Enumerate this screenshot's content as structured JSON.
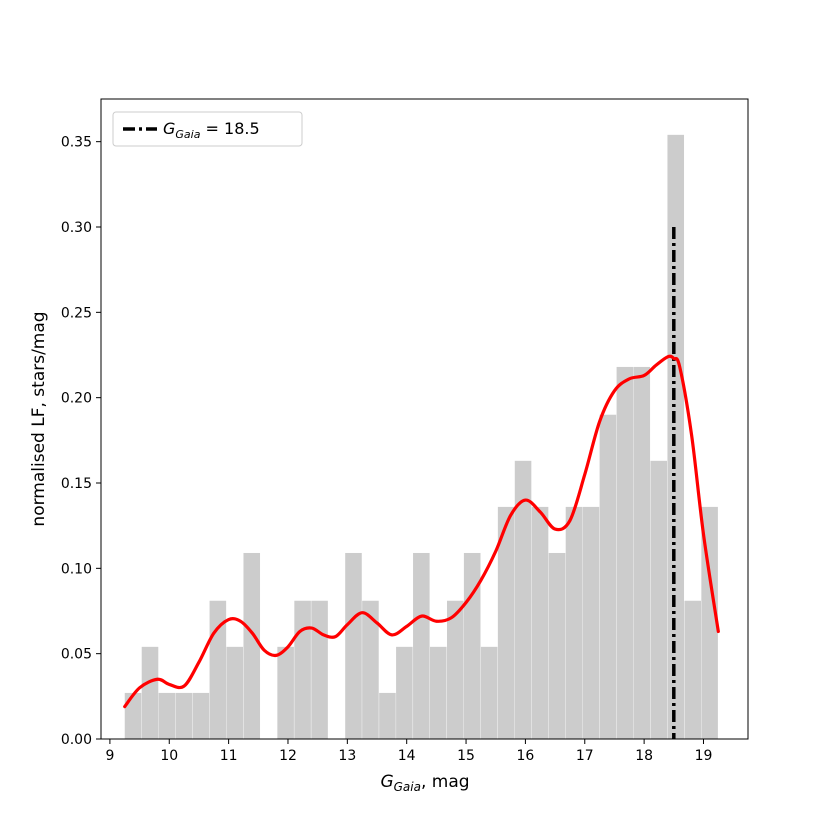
{
  "chart_data": {
    "type": "bar",
    "xlabel": {
      "main": "G",
      "sub": "Gaia",
      "rest": ", mag"
    },
    "ylabel": "normalised LF, stars/mag",
    "xlim": [
      8.85,
      19.75
    ],
    "ylim": [
      0,
      0.375
    ],
    "xticks": [
      9,
      10,
      11,
      12,
      13,
      14,
      15,
      16,
      17,
      18,
      19
    ],
    "xtick_labels": [
      "9",
      "10",
      "11",
      "12",
      "13",
      "14",
      "15",
      "16",
      "17",
      "18",
      "19"
    ],
    "yticks": [
      0,
      0.05,
      0.1,
      0.15,
      0.2,
      0.25,
      0.3,
      0.35
    ],
    "ytick_labels": [
      "0.00",
      "0.05",
      "0.10",
      "0.15",
      "0.20",
      "0.25",
      "0.30",
      "0.35"
    ],
    "grid": false,
    "histogram": {
      "bin_width": 0.2857,
      "bins_start": [
        9.25,
        9.536,
        9.821,
        10.107,
        10.393,
        10.679,
        10.964,
        11.25,
        11.536,
        11.821,
        12.107,
        12.393,
        12.679,
        12.964,
        13.25,
        13.536,
        13.821,
        14.107,
        14.393,
        14.679,
        14.964,
        15.25,
        15.536,
        15.821,
        16.107,
        16.393,
        16.679,
        16.964,
        17.25,
        17.536,
        17.821,
        18.107,
        18.393,
        18.679,
        18.964
      ],
      "values": [
        0.027,
        0.054,
        0.027,
        0.027,
        0.027,
        0.081,
        0.054,
        0.109,
        0.0,
        0.054,
        0.081,
        0.081,
        0.0,
        0.109,
        0.081,
        0.027,
        0.054,
        0.109,
        0.054,
        0.081,
        0.109,
        0.054,
        0.136,
        0.163,
        0.136,
        0.109,
        0.136,
        0.136,
        0.19,
        0.218,
        0.218,
        0.163,
        0.354,
        0.081,
        0.136
      ],
      "color": "#cccccc"
    },
    "series": [
      {
        "type": "line",
        "color": "#ff0000",
        "x": [
          9.25,
          9.5,
          9.8,
          10.0,
          10.25,
          10.5,
          10.75,
          11.0,
          11.2,
          11.4,
          11.6,
          11.8,
          12.0,
          12.2,
          12.4,
          12.6,
          12.8,
          13.0,
          13.25,
          13.5,
          13.75,
          14.0,
          14.25,
          14.5,
          14.75,
          15.0,
          15.25,
          15.5,
          15.75,
          16.0,
          16.25,
          16.5,
          16.75,
          17.0,
          17.25,
          17.5,
          17.75,
          18.0,
          18.2,
          18.4,
          18.5,
          18.6,
          18.8,
          19.0,
          19.25
        ],
        "y": [
          0.019,
          0.03,
          0.035,
          0.032,
          0.031,
          0.045,
          0.062,
          0.07,
          0.069,
          0.062,
          0.052,
          0.049,
          0.054,
          0.063,
          0.065,
          0.061,
          0.06,
          0.067,
          0.074,
          0.068,
          0.061,
          0.066,
          0.072,
          0.069,
          0.071,
          0.08,
          0.093,
          0.11,
          0.131,
          0.14,
          0.133,
          0.123,
          0.128,
          0.155,
          0.186,
          0.204,
          0.211,
          0.213,
          0.219,
          0.224,
          0.223,
          0.218,
          0.178,
          0.12,
          0.063
        ]
      }
    ],
    "vline": {
      "x": 18.5,
      "ymax": 0.3,
      "color": "#000000",
      "style": "dashdot"
    },
    "legend": {
      "placement": "top-left",
      "label_main": "G",
      "label_sub": "Gaia",
      "label_rest": " = 18.5"
    }
  }
}
